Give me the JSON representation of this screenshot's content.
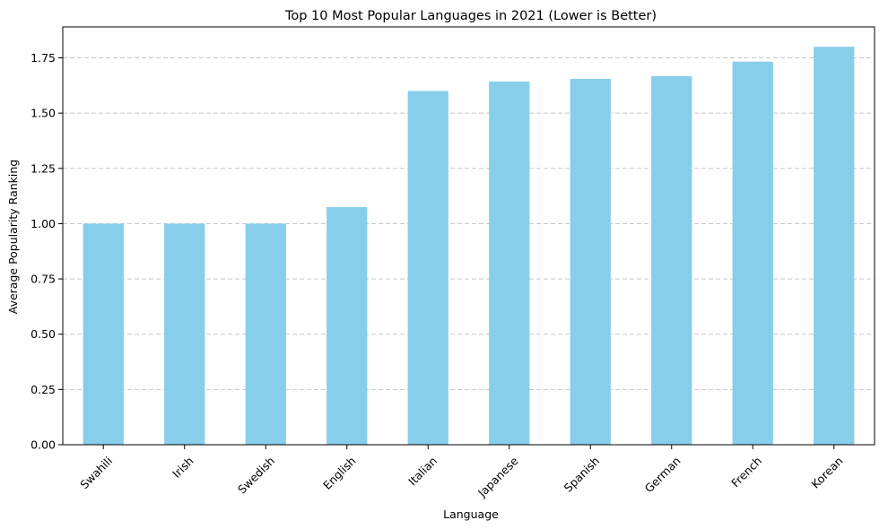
{
  "chart_data": {
    "type": "bar",
    "title": "Top 10 Most Popular Languages in 2021 (Lower is Better)",
    "xlabel": "Language",
    "ylabel": "Average Popularity Ranking",
    "categories": [
      "Swahili",
      "Irish",
      "Swedish",
      "English",
      "Italian",
      "Japanese",
      "Spanish",
      "German",
      "French",
      "Korean"
    ],
    "values": [
      1.0,
      1.0,
      1.0,
      1.075,
      1.6,
      1.643,
      1.655,
      1.667,
      1.733,
      1.8
    ],
    "ylim": [
      0,
      1.89
    ],
    "yticks": [
      "0.00",
      "0.25",
      "0.50",
      "0.75",
      "1.00",
      "1.25",
      "1.50",
      "1.75"
    ],
    "grid": "y-dashed",
    "bar_color": "#87ceeb",
    "grid_color": "#c8c8c8",
    "axis_color": "#000000"
  }
}
